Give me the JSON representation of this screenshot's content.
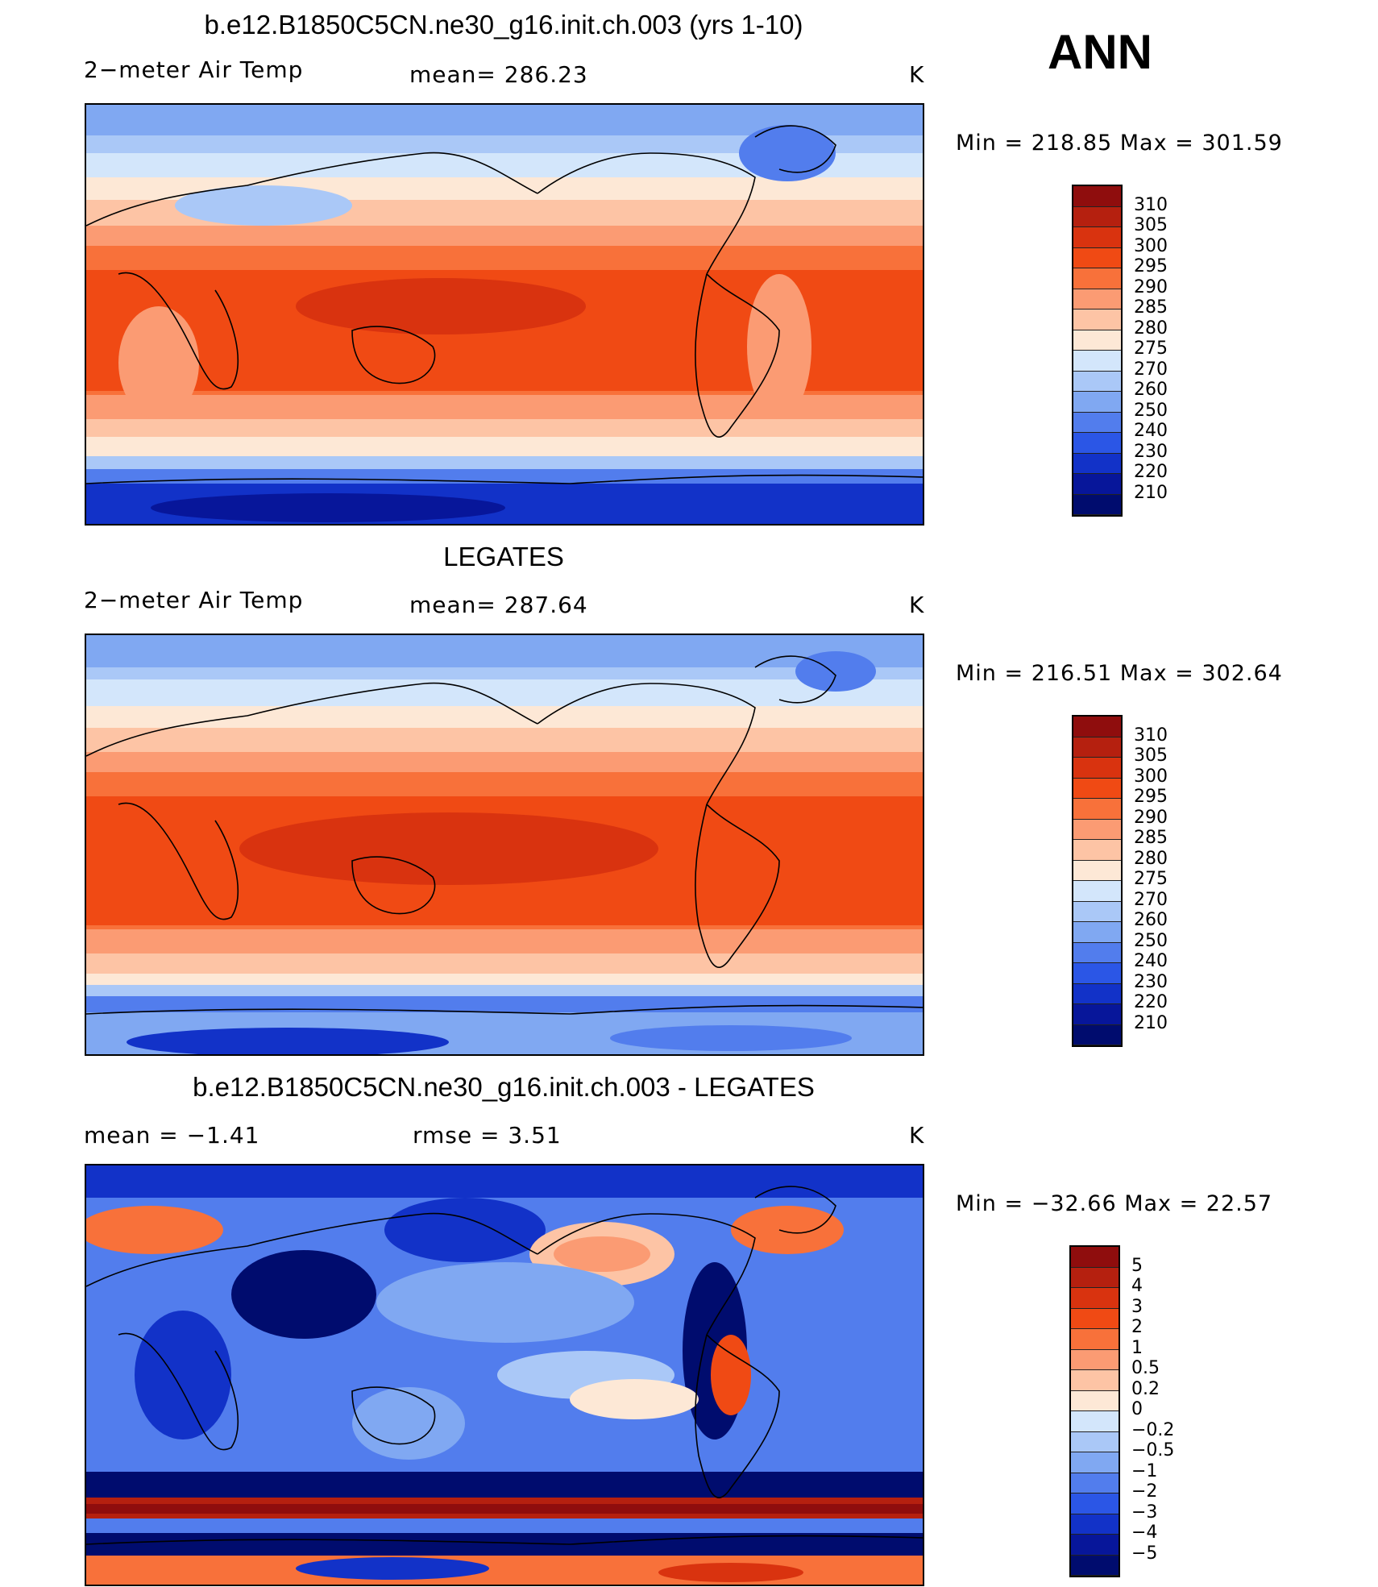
{
  "header": {
    "season": "ANN"
  },
  "panels": [
    {
      "title": "b.e12.B1850C5CN.ne30_g16.init.ch.003 (yrs 1-10)",
      "left_label": "2−meter Air Temp",
      "center_label": "mean=  286.23",
      "units": "K",
      "minmax": "Min  =  218.85  Max  =  301.59",
      "palette": "temp",
      "colorbar_labels": [
        "310",
        "305",
        "300",
        "295",
        "290",
        "285",
        "280",
        "275",
        "270",
        "260",
        "250",
        "240",
        "230",
        "220",
        "210"
      ]
    },
    {
      "title": "LEGATES",
      "left_label": "2−meter Air Temp",
      "center_label": "mean=  287.64",
      "units": "K",
      "minmax": "Min  =  216.51  Max  =  302.64",
      "palette": "temp",
      "colorbar_labels": [
        "310",
        "305",
        "300",
        "295",
        "290",
        "285",
        "280",
        "275",
        "270",
        "260",
        "250",
        "240",
        "230",
        "220",
        "210"
      ]
    },
    {
      "title": "b.e12.B1850C5CN.ne30_g16.init.ch.003 - LEGATES",
      "left_label": "mean  =    −1.41",
      "center_label": "rmse  =     3.51",
      "units": "K",
      "minmax": "Min  =  −32.66  Max  =    22.57",
      "palette": "diff",
      "colorbar_labels": [
        "5",
        "4",
        "3",
        "2",
        "1",
        "0.5",
        "0.2",
        "0",
        "−0.2",
        "−0.5",
        "−1",
        "−2",
        "−3",
        "−4",
        "−5"
      ]
    }
  ],
  "colors": {
    "temp": [
      "#8f0d0d",
      "#b5200f",
      "#d9330f",
      "#f04a14",
      "#f8713a",
      "#fb9b73",
      "#fdc4a5",
      "#fde8d6",
      "#d3e6fb",
      "#aac8f7",
      "#80a8f2",
      "#527ded",
      "#2b56e6",
      "#1232c8",
      "#07169a",
      "#000c6e"
    ],
    "diff": [
      "#8f0d0d",
      "#b5200f",
      "#d9330f",
      "#f04a14",
      "#f8713a",
      "#fb9b73",
      "#fdc4a5",
      "#fde8d6",
      "#d3e6fb",
      "#aac8f7",
      "#80a8f2",
      "#527ded",
      "#2b56e6",
      "#1232c8",
      "#07169a",
      "#000c6e"
    ]
  }
}
